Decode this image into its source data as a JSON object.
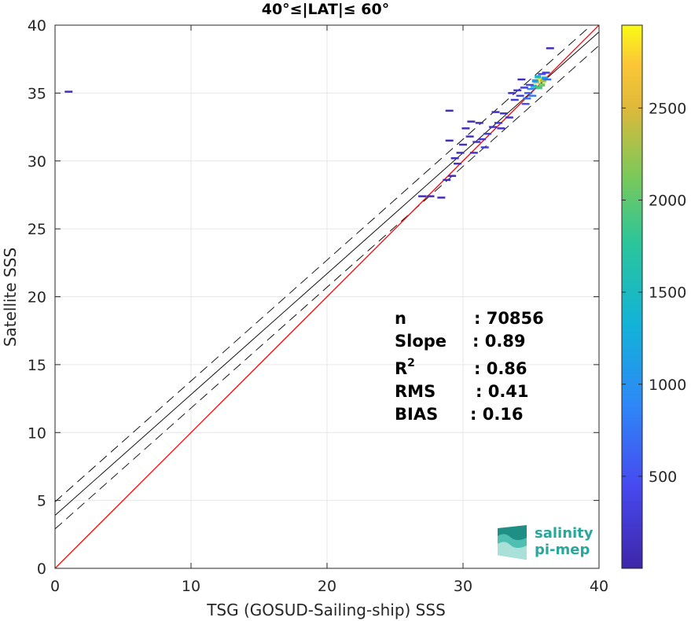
{
  "chart_data": {
    "type": "heatmap",
    "title": "40°≤|LAT|≤ 60°",
    "xlabel": "TSG (GOSUD-Sailing-ship) SSS",
    "ylabel": "Satellite SSS",
    "xlim": [
      0,
      40
    ],
    "ylim": [
      0,
      40
    ],
    "xticks": [
      "0",
      "10",
      "20",
      "30",
      "40"
    ],
    "yticks": [
      "0",
      "5",
      "10",
      "15",
      "20",
      "25",
      "30",
      "35",
      "40"
    ],
    "grid": true,
    "identity_line": {
      "slope": 1,
      "intercept": 0,
      "color": "#ff0000"
    },
    "regression_line": {
      "slope": 0.89,
      "intercept": 3.9,
      "color": "#000000"
    },
    "confidence_band_offset": 1.0,
    "colorbar": {
      "range": [
        0,
        2950
      ],
      "ticks": [
        "500",
        "1000",
        "1500",
        "2000",
        "2500"
      ],
      "tick_values": [
        500,
        1000,
        1500,
        2000,
        2500
      ]
    },
    "density_points": [
      [
        35.4,
        35.8,
        2600
      ],
      [
        35.7,
        36.0,
        2900
      ],
      [
        35.9,
        35.9,
        2300
      ],
      [
        35.2,
        35.5,
        1600
      ],
      [
        35.0,
        35.3,
        900
      ],
      [
        34.8,
        35.0,
        600
      ],
      [
        36.0,
        36.1,
        1200
      ],
      [
        36.2,
        36.0,
        700
      ],
      [
        35.6,
        35.4,
        1900
      ],
      [
        35.3,
        35.9,
        1100
      ],
      [
        34.9,
        35.6,
        400
      ],
      [
        34.5,
        35.4,
        300
      ],
      [
        34.2,
        34.8,
        350
      ],
      [
        33.8,
        34.5,
        250
      ],
      [
        34.6,
        34.2,
        500
      ],
      [
        35.1,
        34.8,
        800
      ],
      [
        34.0,
        35.2,
        200
      ],
      [
        33.6,
        35.0,
        150
      ],
      [
        35.8,
        36.4,
        500
      ],
      [
        36.1,
        36.5,
        300
      ],
      [
        33.0,
        33.5,
        200
      ],
      [
        32.6,
        32.8,
        250
      ],
      [
        32.2,
        32.5,
        200
      ],
      [
        31.8,
        32.0,
        300
      ],
      [
        31.4,
        31.6,
        250
      ],
      [
        31.0,
        31.4,
        200
      ],
      [
        30.5,
        31.8,
        150
      ],
      [
        30.0,
        31.2,
        150
      ],
      [
        29.8,
        30.6,
        150
      ],
      [
        29.4,
        30.2,
        120
      ],
      [
        30.8,
        30.6,
        200
      ],
      [
        31.6,
        31.0,
        250
      ],
      [
        32.8,
        32.4,
        200
      ],
      [
        33.4,
        33.2,
        180
      ],
      [
        30.2,
        32.4,
        120
      ],
      [
        29.0,
        31.5,
        100
      ],
      [
        29.6,
        29.8,
        150
      ],
      [
        29.2,
        28.9,
        120
      ],
      [
        28.8,
        28.6,
        120
      ],
      [
        27.0,
        27.4,
        150
      ],
      [
        27.6,
        27.4,
        120
      ],
      [
        28.4,
        27.3,
        100
      ],
      [
        30.6,
        32.9,
        100
      ],
      [
        29.0,
        33.7,
        100
      ],
      [
        31.2,
        32.8,
        120
      ],
      [
        32.4,
        33.6,
        120
      ],
      [
        34.3,
        36.0,
        120
      ],
      [
        36.4,
        38.3,
        100
      ],
      [
        1.0,
        35.1,
        100
      ],
      [
        35.5,
        36.2,
        1500
      ],
      [
        35.8,
        35.6,
        2100
      ],
      [
        34.7,
        34.6,
        700
      ]
    ]
  },
  "stats": {
    "labels": [
      "n",
      "Slope",
      "R",
      "RMS",
      "BIAS"
    ],
    "r_superscript": "2",
    "values": [
      ": 70856",
      ": 0.89",
      ": 0.86",
      ": 0.41",
      ": 0.16"
    ]
  },
  "logo": {
    "line1": "salinity",
    "line2": "pi-mep",
    "color": "#2aa79b"
  }
}
